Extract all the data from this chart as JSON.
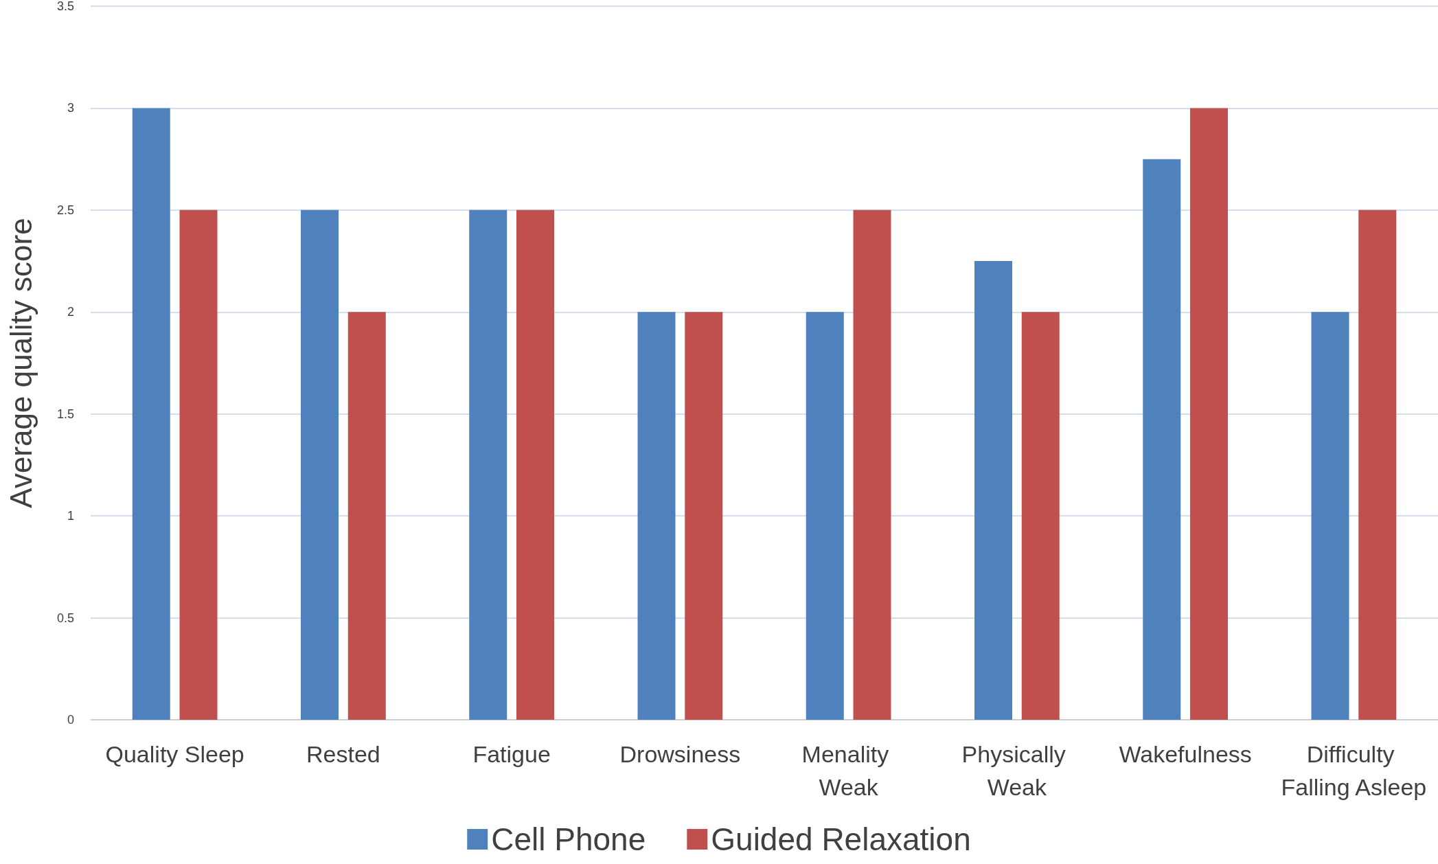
{
  "chart_data": {
    "type": "bar",
    "ylabel": "Average quality score",
    "categories": [
      "Quality Sleep",
      "Rested",
      "Fatigue",
      "Drowsiness",
      "Menality Weak",
      "Physically Weak",
      "Wakefulness",
      "Difficulty Falling Asleep"
    ],
    "series": [
      {
        "name": "Cell Phone",
        "color": "#4f81bd",
        "values": [
          3,
          2.5,
          2.5,
          2,
          2,
          2.25,
          2.75,
          2
        ]
      },
      {
        "name": "Guided Relaxation",
        "color": "#c0504d",
        "values": [
          2.5,
          2,
          2.5,
          2,
          2.5,
          2,
          3,
          2.5
        ]
      }
    ],
    "ylim": [
      0,
      3.5
    ],
    "yticks": [
      0,
      0.5,
      1,
      1.5,
      2,
      2.5,
      3,
      3.5
    ],
    "grid": "y",
    "legend": "bottom"
  }
}
